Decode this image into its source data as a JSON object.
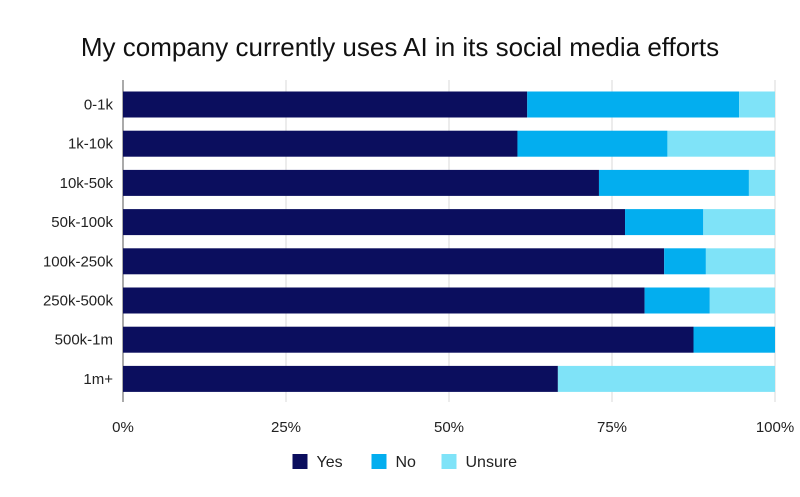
{
  "chart_data": {
    "type": "bar",
    "orientation": "horizontal",
    "stacked": true,
    "title": "My company currently uses AI in its social media efforts",
    "xlabel": "",
    "ylabel": "",
    "xlim": [
      0,
      100
    ],
    "x_ticks": [
      "0%",
      "25%",
      "50%",
      "75%",
      "100%"
    ],
    "x_tick_values": [
      0,
      25,
      50,
      75,
      100
    ],
    "grid": true,
    "legend_position": "bottom",
    "categories": [
      "0-1k",
      "1k-10k",
      "10k-50k",
      "50k-100k",
      "100k-250k",
      "250k-500k",
      "500k-1m",
      "1m+"
    ],
    "series": [
      {
        "name": "Yes",
        "color": "#0b0e5e",
        "values": [
          62,
          60.5,
          73,
          77,
          83,
          80,
          87.5,
          66.7
        ]
      },
      {
        "name": "No",
        "color": "#03aeef",
        "values": [
          32.5,
          23,
          23,
          12,
          6.4,
          10,
          12.5,
          0
        ]
      },
      {
        "name": "Unsure",
        "color": "#7fe3f8",
        "values": [
          5.5,
          16.5,
          4,
          11,
          10.6,
          10,
          0,
          33.3
        ]
      }
    ]
  }
}
